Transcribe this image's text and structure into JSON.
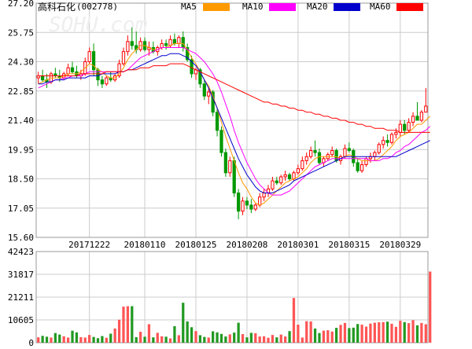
{
  "header": {
    "title": "高科石化",
    "code": "(002778)",
    "watermark": "SOHU.com"
  },
  "legend": [
    {
      "label": "MA5",
      "color": "#ff9900"
    },
    {
      "label": "MA10",
      "color": "#ff00ff"
    },
    {
      "label": "MA20",
      "color": "#0000cc"
    },
    {
      "label": "MA60",
      "color": "#ff0000"
    }
  ],
  "colors": {
    "up": "#ff0000",
    "down": "#009900",
    "volume_up": "#ff5555",
    "volume_down": "#229922",
    "grid": "#cccccc"
  },
  "chart_data": [
    {
      "type": "candlestick",
      "title": "",
      "ylim": [
        15.6,
        27.2
      ],
      "yticks": [
        "27.20",
        "25.75",
        "24.30",
        "22.85",
        "21.40",
        "19.95",
        "18.50",
        "17.05",
        "15.60"
      ],
      "xtick_labels": [
        "20171222",
        "20180110",
        "20180125",
        "20180208",
        "20180301",
        "20180315",
        "20180329"
      ],
      "xtick_index": [
        12,
        25,
        37,
        49,
        61,
        73,
        85
      ],
      "grid": true,
      "candles": [
        [
          23.5,
          23.8,
          23.2,
          23.6
        ],
        [
          23.6,
          23.9,
          23.3,
          23.4
        ],
        [
          23.4,
          23.7,
          23.0,
          23.3
        ],
        [
          23.3,
          23.8,
          23.2,
          23.7
        ],
        [
          23.7,
          24.0,
          23.5,
          23.6
        ],
        [
          23.6,
          23.9,
          23.3,
          23.5
        ],
        [
          23.5,
          23.8,
          23.4,
          23.7
        ],
        [
          23.7,
          24.2,
          23.6,
          24.0
        ],
        [
          24.0,
          24.3,
          23.7,
          23.8
        ],
        [
          23.8,
          24.1,
          23.5,
          23.6
        ],
        [
          23.6,
          23.9,
          23.4,
          23.7
        ],
        [
          23.7,
          24.5,
          23.6,
          24.3
        ],
        [
          24.3,
          25.0,
          24.2,
          24.8
        ],
        [
          24.8,
          25.2,
          23.6,
          23.9
        ],
        [
          23.9,
          24.0,
          23.1,
          23.4
        ],
        [
          23.4,
          23.6,
          23.0,
          23.2
        ],
        [
          23.2,
          23.6,
          23.1,
          23.5
        ],
        [
          23.5,
          23.8,
          23.3,
          23.4
        ],
        [
          23.4,
          23.7,
          23.3,
          23.6
        ],
        [
          23.6,
          24.4,
          23.5,
          24.2
        ],
        [
          24.2,
          25.0,
          24.1,
          24.8
        ],
        [
          24.8,
          25.6,
          24.6,
          25.3
        ],
        [
          25.3,
          26.0,
          24.9,
          25.1
        ],
        [
          25.1,
          25.8,
          24.7,
          24.9
        ],
        [
          24.9,
          25.5,
          24.8,
          25.3
        ],
        [
          25.3,
          25.5,
          24.8,
          24.9
        ],
        [
          24.9,
          25.3,
          24.6,
          25.0
        ],
        [
          25.0,
          25.3,
          24.7,
          24.8
        ],
        [
          24.8,
          25.1,
          24.6,
          25.0
        ],
        [
          25.0,
          25.4,
          24.9,
          25.2
        ],
        [
          25.2,
          25.4,
          24.9,
          25.1
        ],
        [
          25.1,
          25.6,
          25.0,
          25.4
        ],
        [
          25.4,
          25.7,
          25.1,
          25.2
        ],
        [
          25.2,
          25.6,
          25.0,
          25.5
        ],
        [
          25.5,
          25.8,
          24.8,
          25.0
        ],
        [
          25.0,
          25.2,
          24.3,
          24.4
        ],
        [
          24.4,
          24.6,
          23.5,
          23.7
        ],
        [
          23.7,
          24.0,
          23.4,
          23.9
        ],
        [
          23.9,
          24.0,
          23.0,
          23.2
        ],
        [
          23.2,
          23.4,
          22.4,
          22.6
        ],
        [
          22.6,
          23.0,
          22.2,
          22.8
        ],
        [
          22.8,
          22.9,
          21.6,
          21.8
        ],
        [
          21.8,
          22.0,
          20.6,
          20.9
        ],
        [
          20.9,
          21.1,
          19.6,
          19.8
        ],
        [
          19.8,
          20.0,
          18.6,
          18.8
        ],
        [
          18.8,
          19.6,
          18.6,
          19.4
        ],
        [
          19.4,
          19.6,
          17.6,
          17.8
        ],
        [
          17.8,
          18.0,
          16.5,
          16.9
        ],
        [
          16.9,
          17.6,
          16.7,
          17.4
        ],
        [
          17.4,
          17.6,
          17.0,
          17.2
        ],
        [
          17.2,
          17.5,
          16.8,
          17.0
        ],
        [
          17.0,
          17.3,
          16.9,
          17.2
        ],
        [
          17.2,
          17.8,
          17.1,
          17.6
        ],
        [
          17.6,
          18.0,
          17.4,
          17.8
        ],
        [
          17.8,
          18.2,
          17.6,
          18.0
        ],
        [
          18.0,
          18.6,
          17.9,
          18.4
        ],
        [
          18.4,
          18.6,
          18.2,
          18.3
        ],
        [
          18.3,
          18.7,
          18.2,
          18.6
        ],
        [
          18.6,
          18.9,
          18.4,
          18.7
        ],
        [
          18.7,
          18.8,
          18.4,
          18.5
        ],
        [
          18.5,
          18.9,
          18.4,
          18.8
        ],
        [
          18.8,
          19.2,
          18.7,
          19.0
        ],
        [
          19.0,
          19.6,
          18.9,
          19.4
        ],
        [
          19.4,
          19.8,
          19.2,
          19.6
        ],
        [
          19.6,
          20.1,
          19.5,
          19.9
        ],
        [
          19.9,
          20.4,
          19.6,
          19.8
        ],
        [
          19.8,
          20.0,
          19.2,
          19.3
        ],
        [
          19.3,
          19.6,
          19.1,
          19.5
        ],
        [
          19.5,
          19.8,
          19.4,
          19.7
        ],
        [
          19.7,
          20.1,
          19.6,
          19.9
        ],
        [
          19.9,
          20.0,
          19.3,
          19.4
        ],
        [
          19.4,
          19.7,
          19.2,
          19.6
        ],
        [
          19.6,
          20.2,
          19.5,
          20.0
        ],
        [
          20.0,
          20.3,
          19.8,
          19.9
        ],
        [
          19.9,
          20.0,
          19.1,
          19.3
        ],
        [
          19.3,
          19.5,
          18.8,
          18.9
        ],
        [
          18.9,
          19.4,
          18.8,
          19.2
        ],
        [
          19.2,
          19.6,
          19.1,
          19.5
        ],
        [
          19.5,
          19.8,
          19.3,
          19.6
        ],
        [
          19.6,
          19.9,
          19.4,
          19.8
        ],
        [
          19.8,
          20.3,
          19.7,
          20.2
        ],
        [
          20.2,
          20.6,
          20.0,
          20.4
        ],
        [
          20.4,
          20.7,
          20.1,
          20.3
        ],
        [
          20.3,
          20.8,
          20.2,
          20.7
        ],
        [
          20.7,
          21.0,
          20.5,
          20.8
        ],
        [
          20.8,
          21.4,
          20.6,
          21.2
        ],
        [
          21.2,
          21.4,
          20.7,
          20.9
        ],
        [
          20.9,
          21.5,
          20.8,
          21.3
        ],
        [
          21.3,
          21.8,
          21.1,
          21.6
        ],
        [
          21.6,
          22.3,
          21.4,
          21.4
        ],
        [
          21.4,
          21.9,
          21.3,
          21.8
        ],
        [
          21.8,
          23.0,
          21.8,
          22.1
        ]
      ],
      "ma": [
        {
          "name": "MA5",
          "color": "#ff9900",
          "values": [
            23.2,
            23.3,
            23.4,
            23.5,
            23.5,
            23.5,
            23.6,
            23.7,
            23.7,
            23.7,
            23.8,
            24.0,
            24.2,
            24.1,
            23.9,
            23.8,
            23.6,
            23.5,
            23.5,
            23.7,
            24.0,
            24.4,
            24.7,
            24.9,
            25.1,
            25.1,
            25.0,
            24.9,
            24.9,
            25.0,
            25.0,
            25.1,
            25.2,
            25.2,
            25.2,
            24.9,
            24.5,
            24.2,
            23.8,
            23.4,
            23.1,
            22.6,
            22.0,
            21.3,
            20.6,
            20.0,
            19.4,
            18.8,
            18.3,
            18.0,
            17.6,
            17.3,
            17.2,
            17.3,
            17.5,
            17.7,
            17.9,
            18.1,
            18.3,
            18.4,
            18.5,
            18.6,
            18.8,
            19.0,
            19.3,
            19.5,
            19.6,
            19.6,
            19.6,
            19.6,
            19.6,
            19.5,
            19.6,
            19.7,
            19.6,
            19.5,
            19.4,
            19.4,
            19.4,
            19.4,
            19.5,
            19.7,
            19.9,
            20.1,
            20.4,
            20.6,
            20.7,
            20.8,
            21.0,
            21.2,
            21.2,
            21.4,
            21.6
          ]
        },
        {
          "name": "MA10",
          "color": "#ff00ff",
          "values": [
            23.0,
            23.1,
            23.2,
            23.3,
            23.4,
            23.4,
            23.5,
            23.5,
            23.6,
            23.6,
            23.6,
            23.7,
            23.8,
            23.8,
            23.8,
            23.8,
            23.8,
            23.8,
            23.8,
            23.8,
            23.8,
            23.9,
            24.1,
            24.3,
            24.5,
            24.6,
            24.7,
            24.8,
            24.9,
            25.0,
            25.0,
            25.0,
            25.0,
            25.0,
            25.0,
            24.9,
            24.8,
            24.7,
            24.5,
            24.3,
            24.0,
            23.7,
            23.3,
            22.8,
            22.2,
            21.6,
            20.9,
            20.3,
            19.8,
            19.3,
            18.9,
            18.5,
            18.2,
            18.0,
            17.8,
            17.7,
            17.7,
            17.7,
            17.8,
            17.9,
            18.1,
            18.3,
            18.5,
            18.7,
            18.9,
            19.1,
            19.2,
            19.3,
            19.4,
            19.5,
            19.5,
            19.5,
            19.5,
            19.5,
            19.5,
            19.5,
            19.5,
            19.5,
            19.4,
            19.4,
            19.4,
            19.5,
            19.5,
            19.6,
            19.8,
            19.9,
            20.1,
            20.2,
            20.4,
            20.6,
            20.8,
            20.9,
            21.1
          ]
        },
        {
          "name": "MA20",
          "color": "#0000cc",
          "values": [
            23.2,
            23.2,
            23.3,
            23.3,
            23.4,
            23.4,
            23.4,
            23.5,
            23.5,
            23.5,
            23.5,
            23.5,
            23.6,
            23.6,
            23.6,
            23.7,
            23.7,
            23.7,
            23.7,
            23.8,
            23.8,
            23.9,
            23.9,
            24.0,
            24.1,
            24.2,
            24.3,
            24.4,
            24.5,
            24.6,
            24.6,
            24.7,
            24.7,
            24.7,
            24.6,
            24.5,
            24.3,
            24.1,
            23.8,
            23.4,
            23.0,
            22.5,
            22.0,
            21.5,
            21.0,
            20.5,
            20.0,
            19.5,
            19.1,
            18.7,
            18.4,
            18.1,
            17.9,
            17.8,
            17.8,
            17.8,
            17.9,
            18.0,
            18.1,
            18.2,
            18.4,
            18.5,
            18.6,
            18.7,
            18.8,
            18.9,
            19.0,
            19.1,
            19.2,
            19.3,
            19.4,
            19.5,
            19.6,
            19.6,
            19.6,
            19.6,
            19.6,
            19.6,
            19.6,
            19.6,
            19.6,
            19.6,
            19.6,
            19.6,
            19.6,
            19.7,
            19.8,
            19.9,
            20.0,
            20.1,
            20.2,
            20.3,
            20.4
          ]
        },
        {
          "name": "MA60",
          "color": "#ff0000",
          "values": [
            23.6,
            23.6,
            23.6,
            23.6,
            23.6,
            23.6,
            23.6,
            23.6,
            23.6,
            23.6,
            23.7,
            23.7,
            23.7,
            23.7,
            23.7,
            23.7,
            23.8,
            23.8,
            23.8,
            23.8,
            23.8,
            23.9,
            23.9,
            23.9,
            24.0,
            24.0,
            24.0,
            24.1,
            24.1,
            24.1,
            24.1,
            24.2,
            24.2,
            24.2,
            24.2,
            24.1,
            24.0,
            23.9,
            23.8,
            23.7,
            23.6,
            23.5,
            23.4,
            23.3,
            23.2,
            23.1,
            23.0,
            22.9,
            22.8,
            22.7,
            22.6,
            22.5,
            22.4,
            22.3,
            22.3,
            22.2,
            22.2,
            22.1,
            22.1,
            22.0,
            22.0,
            21.9,
            21.9,
            21.8,
            21.8,
            21.7,
            21.7,
            21.6,
            21.6,
            21.5,
            21.5,
            21.4,
            21.4,
            21.3,
            21.3,
            21.2,
            21.2,
            21.1,
            21.1,
            21.0,
            21.0,
            21.0,
            20.9,
            20.9,
            20.9,
            20.8,
            20.8,
            20.8,
            20.8,
            20.8,
            20.8,
            20.8,
            20.8
          ]
        }
      ]
    },
    {
      "type": "bar",
      "title": "",
      "ylim": [
        0,
        42423
      ],
      "yticks": [
        "42423",
        "31817",
        "21211",
        "10605",
        "0"
      ],
      "values": [
        2500,
        3200,
        2800,
        2400,
        4500,
        3800,
        3000,
        2400,
        5600,
        4800,
        2600,
        2400,
        3600,
        2700,
        2100,
        3100,
        2300,
        4200,
        6600,
        10700,
        16800,
        17000,
        17000,
        2600,
        5100,
        2800,
        8600,
        2500,
        4600,
        3000,
        2800,
        2000,
        7700,
        3500,
        18600,
        9900,
        7200,
        5400,
        3500,
        2700,
        2400,
        5300,
        4800,
        4100,
        2900,
        3900,
        4700,
        9300,
        4000,
        2500,
        4600,
        4400,
        2900,
        3000,
        2300,
        3600,
        2500,
        3800,
        2900,
        5400,
        20800,
        8400,
        2400,
        10000,
        9900,
        6600,
        4500,
        5600,
        5800,
        5200,
        6900,
        8300,
        9200,
        6800,
        7000,
        8700,
        8400,
        7500,
        8900,
        9300,
        9500,
        9600,
        9800,
        8800,
        7400,
        10200,
        9600,
        9100,
        10500,
        8100,
        9200,
        8600,
        33100
      ]
    }
  ]
}
